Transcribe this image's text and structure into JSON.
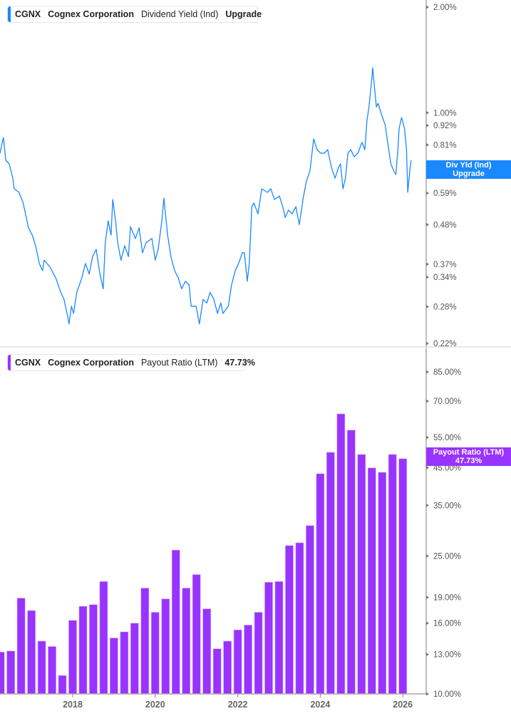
{
  "top_legend": {
    "ticker": "CGNX",
    "company": "Cognex Corporation",
    "metric": "Dividend Yield (Ind)",
    "value": "Upgrade"
  },
  "top_badge": {
    "line1": "Div Yld (Ind)",
    "line2": "Upgrade"
  },
  "bottom_legend": {
    "ticker": "CGNX",
    "company": "Cognex Corporation",
    "metric": "Payout Ratio (LTM)",
    "value": "47.73%"
  },
  "bottom_badge": {
    "line1": "Payout Ratio (LTM)",
    "line2": "47.73%"
  },
  "colors": {
    "dividend_yield": "#1a88ff",
    "payout_ratio": "#9933ff",
    "axis": "#aaaaaa"
  },
  "chart_data": [
    {
      "type": "line",
      "series_name": "Dividend Yield (Ind)",
      "y_scale": "log",
      "ylim": [
        0.22,
        2.0
      ],
      "xlim": [
        2016.23,
        2026.55
      ],
      "y_ticks": [
        "2.00%",
        "1.00%",
        "0.92%",
        "0.81%",
        "0.70%",
        "0.59%",
        "0.48%",
        "0.37%",
        "0.34%",
        "0.28%",
        "0.22%"
      ],
      "y_tick_values": [
        2.0,
        1.0,
        0.92,
        0.81,
        0.7,
        0.59,
        0.48,
        0.37,
        0.34,
        0.28,
        0.22
      ],
      "x": [
        2016.24,
        2016.32,
        2016.38,
        2016.46,
        2016.55,
        2016.58,
        2016.7,
        2016.8,
        2016.93,
        2017.02,
        2017.1,
        2017.19,
        2017.27,
        2017.31,
        2017.45,
        2017.59,
        2017.71,
        2017.79,
        2017.88,
        2017.91,
        2017.97,
        2018.02,
        2018.1,
        2018.22,
        2018.31,
        2018.4,
        2018.48,
        2018.57,
        2018.66,
        2018.74,
        2018.79,
        2018.86,
        2018.93,
        2018.97,
        2019.04,
        2019.09,
        2019.17,
        2019.26,
        2019.35,
        2019.4,
        2019.52,
        2019.61,
        2019.69,
        2019.78,
        2019.92,
        2020.0,
        2020.07,
        2020.16,
        2020.21,
        2020.3,
        2020.38,
        2020.47,
        2020.56,
        2020.64,
        2020.73,
        2020.82,
        2020.87,
        2020.99,
        2021.07,
        2021.16,
        2021.25,
        2021.33,
        2021.42,
        2021.51,
        2021.59,
        2021.64,
        2021.77,
        2021.85,
        2021.94,
        2022.02,
        2022.11,
        2022.16,
        2022.23,
        2022.28,
        2022.34,
        2022.39,
        2022.49,
        2022.58,
        2022.72,
        2022.8,
        2022.89,
        2023.01,
        2023.09,
        2023.15,
        2023.23,
        2023.32,
        2023.41,
        2023.49,
        2023.58,
        2023.66,
        2023.75,
        2023.84,
        2023.92,
        2024.01,
        2024.1,
        2024.18,
        2024.27,
        2024.36,
        2024.44,
        2024.49,
        2024.55,
        2024.61,
        2024.67,
        2024.74,
        2024.82,
        2024.91,
        2025.01,
        2025.08,
        2025.13,
        2025.18,
        2025.25,
        2025.27,
        2025.31,
        2025.36,
        2025.4,
        2025.48,
        2025.57,
        2025.66,
        2025.71,
        2025.78,
        2025.83,
        2025.88,
        2025.91,
        2025.97,
        2026.04,
        2026.09,
        2026.12,
        2026.17,
        2026.2
      ],
      "values": [
        0.767,
        0.85,
        0.732,
        0.715,
        0.651,
        0.607,
        0.593,
        0.553,
        0.47,
        0.448,
        0.418,
        0.372,
        0.355,
        0.38,
        0.363,
        0.338,
        0.308,
        0.294,
        0.262,
        0.25,
        0.281,
        0.268,
        0.308,
        0.338,
        0.372,
        0.347,
        0.389,
        0.408,
        0.347,
        0.315,
        0.427,
        0.492,
        0.448,
        0.566,
        0.492,
        0.427,
        0.38,
        0.418,
        0.389,
        0.474,
        0.438,
        0.47,
        0.399,
        0.427,
        0.438,
        0.38,
        0.408,
        0.492,
        0.571,
        0.448,
        0.389,
        0.355,
        0.338,
        0.315,
        0.331,
        0.323,
        0.281,
        0.281,
        0.25,
        0.294,
        0.287,
        0.308,
        0.294,
        0.268,
        0.287,
        0.268,
        0.281,
        0.323,
        0.355,
        0.372,
        0.399,
        0.399,
        0.331,
        0.372,
        0.54,
        0.553,
        0.515,
        0.607,
        0.593,
        0.607,
        0.566,
        0.579,
        0.54,
        0.503,
        0.528,
        0.515,
        0.54,
        0.48,
        0.566,
        0.636,
        0.683,
        0.842,
        0.785,
        0.767,
        0.767,
        0.785,
        0.699,
        0.651,
        0.699,
        0.715,
        0.607,
        0.651,
        0.767,
        0.785,
        0.749,
        0.767,
        0.823,
        0.785,
        0.947,
        1.039,
        1.253,
        1.344,
        1.196,
        1.039,
        1.064,
        0.992,
        0.925,
        0.785,
        0.715,
        0.683,
        0.667,
        0.785,
        0.903,
        0.969,
        0.903,
        0.785,
        0.593,
        0.683,
        0.732
      ]
    },
    {
      "type": "bar",
      "series_name": "Payout Ratio (LTM)",
      "y_scale": "log",
      "ylim": [
        10,
        85
      ],
      "xlim": [
        2016.23,
        2026.55
      ],
      "x_ticks": [
        "2018",
        "2020",
        "2022",
        "2024",
        "2026"
      ],
      "x_tick_values": [
        2018,
        2020,
        2022,
        2024,
        2026
      ],
      "y_ticks": [
        "85.00%",
        "70.00%",
        "55.00%",
        "45.00%",
        "35.00%",
        "25.00%",
        "19.00%",
        "16.00%",
        "13.00%",
        "10.00%"
      ],
      "y_tick_values": [
        85,
        70,
        55,
        45,
        35,
        25,
        19,
        16,
        13,
        10
      ],
      "x": [
        2016.25,
        2016.5,
        2016.75,
        2017.0,
        2017.25,
        2017.5,
        2017.75,
        2018.0,
        2018.25,
        2018.5,
        2018.75,
        2019.0,
        2019.25,
        2019.5,
        2019.75,
        2020.0,
        2020.25,
        2020.5,
        2020.75,
        2021.0,
        2021.25,
        2021.5,
        2021.75,
        2022.0,
        2022.25,
        2022.5,
        2022.75,
        2023.0,
        2023.25,
        2023.5,
        2023.75,
        2024.0,
        2024.25,
        2024.5,
        2024.75,
        2025.0,
        2025.25,
        2025.5,
        2025.75,
        2026.0
      ],
      "values": [
        13.2,
        13.3,
        18.9,
        17.4,
        14.2,
        13.7,
        11.3,
        16.3,
        17.9,
        18.1,
        21.1,
        14.5,
        15.1,
        16.0,
        20.2,
        17.2,
        18.8,
        26.0,
        20.2,
        22.1,
        17.6,
        13.5,
        14.2,
        15.3,
        15.8,
        17.2,
        21.0,
        21.1,
        26.8,
        27.3,
        30.6,
        43.2,
        49.8,
        64.3,
        57.7,
        49.1,
        44.9,
        43.6,
        49.1,
        47.73
      ]
    }
  ]
}
